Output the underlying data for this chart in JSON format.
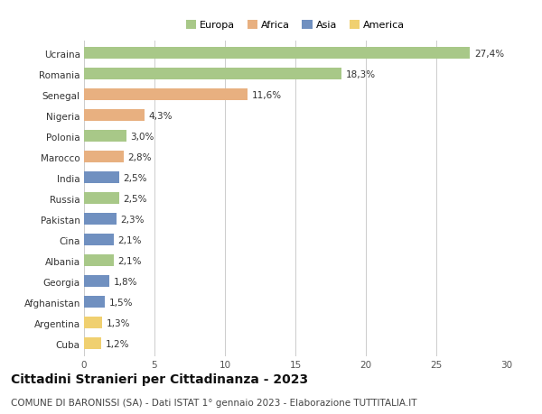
{
  "countries": [
    "Ucraina",
    "Romania",
    "Senegal",
    "Nigeria",
    "Polonia",
    "Marocco",
    "India",
    "Russia",
    "Pakistan",
    "Cina",
    "Albania",
    "Georgia",
    "Afghanistan",
    "Argentina",
    "Cuba"
  ],
  "values": [
    27.4,
    18.3,
    11.6,
    4.3,
    3.0,
    2.8,
    2.5,
    2.5,
    2.3,
    2.1,
    2.1,
    1.8,
    1.5,
    1.3,
    1.2
  ],
  "labels": [
    "27,4%",
    "18,3%",
    "11,6%",
    "4,3%",
    "3,0%",
    "2,8%",
    "2,5%",
    "2,5%",
    "2,3%",
    "2,1%",
    "2,1%",
    "1,8%",
    "1,5%",
    "1,3%",
    "1,2%"
  ],
  "continents": [
    "Europa",
    "Europa",
    "Africa",
    "Africa",
    "Europa",
    "Africa",
    "Asia",
    "Europa",
    "Asia",
    "Asia",
    "Europa",
    "Asia",
    "Asia",
    "America",
    "America"
  ],
  "colors": {
    "Europa": "#a8c888",
    "Africa": "#e8b080",
    "Asia": "#7090c0",
    "America": "#f0d070"
  },
  "legend_order": [
    "Europa",
    "Africa",
    "Asia",
    "America"
  ],
  "xlim": [
    0,
    30
  ],
  "xticks": [
    0,
    5,
    10,
    15,
    20,
    25,
    30
  ],
  "title": "Cittadini Stranieri per Cittadinanza - 2023",
  "subtitle": "COMUNE DI BARONISSI (SA) - Dati ISTAT 1° gennaio 2023 - Elaborazione TUTTITALIA.IT",
  "bg_color": "#ffffff",
  "grid_color": "#cccccc",
  "bar_height": 0.55,
  "label_fontsize": 7.5,
  "tick_fontsize": 7.5,
  "title_fontsize": 10,
  "subtitle_fontsize": 7.5
}
